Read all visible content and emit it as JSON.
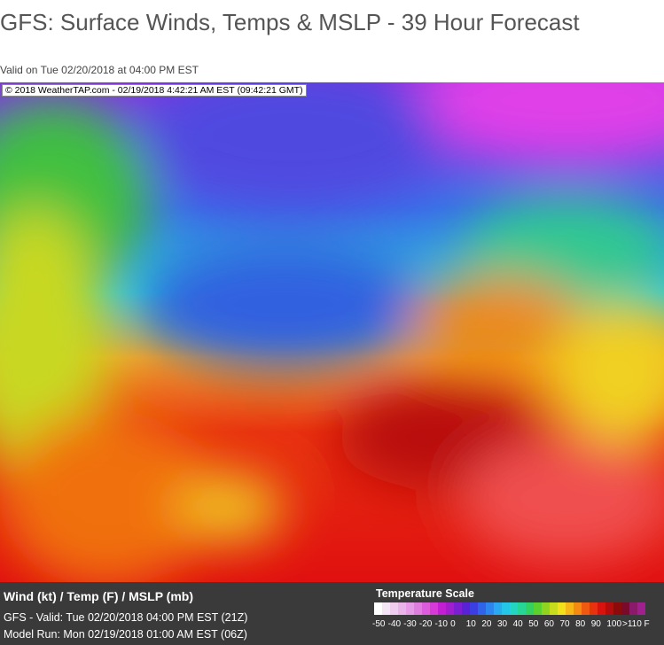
{
  "header": {
    "title": "GFS: Surface Winds, Temps & MSLP - 39 Hour Forecast",
    "valid": "Valid on Tue 02/20/2018 at 04:00 PM EST"
  },
  "map": {
    "stamp": "© 2018 WeatherTAP.com - 02/19/2018  4:42:21 AM EST (09:42:21 GMT)"
  },
  "footer": {
    "heading": "Wind (kt) / Temp (F) / MSLP (mb)",
    "valid": "GFS - Valid: Tue 02/20/2018 04:00 PM EST (21Z)",
    "model_run": "Model Run: Mon 02/19/2018 01:00 AM EST (06Z)",
    "scale": {
      "title": "Temperature Scale",
      "labels": [
        "-50",
        "-40",
        "-30",
        "-20",
        "-10",
        "0",
        "10",
        "20",
        "30",
        "40",
        "50",
        "60",
        "70",
        "80",
        "90",
        "100",
        ">110 F"
      ],
      "colors": [
        "#ffffff",
        "#f4e6f4",
        "#efcdef",
        "#eab4ea",
        "#e59be5",
        "#e07ee0",
        "#dc5cdc",
        "#d83ad8",
        "#c21fd2",
        "#a11ecf",
        "#7b1fd0",
        "#5a22d6",
        "#3b3ee0",
        "#2f63e8",
        "#2d86ee",
        "#2aa8f0",
        "#23c6e6",
        "#22d6c2",
        "#26d694",
        "#33d15f",
        "#5ad12f",
        "#90d41f",
        "#c8dc1c",
        "#f2e01b",
        "#f7b617",
        "#f58a13",
        "#f05a10",
        "#e8310d",
        "#d8130d",
        "#b30c0c",
        "#8d0a0a",
        "#7a0a2a",
        "#8c1a6a",
        "#a0208f"
      ]
    }
  }
}
